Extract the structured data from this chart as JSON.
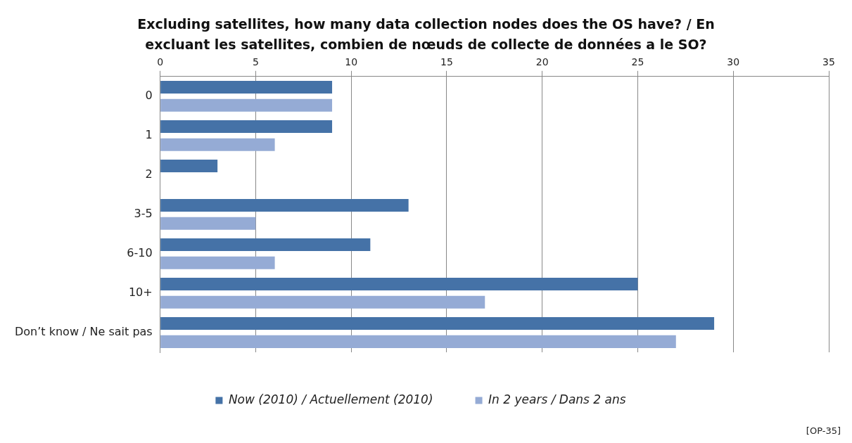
{
  "chart_data": {
    "type": "bar",
    "orientation": "horizontal",
    "title": "Excluding satellites, how many data collection nodes does the OS have? / En excluant les satellites, combien de nœuds de collecte de données a le SO?",
    "categories": [
      "0",
      "1",
      "2",
      "3-5",
      "6-10",
      "10+",
      "Don’t know / Ne sait pas"
    ],
    "series": [
      {
        "name": "Now (2010) / Actuellement (2010)",
        "color": "#4572a7",
        "values": [
          9,
          9,
          3,
          13,
          11,
          25,
          29
        ]
      },
      {
        "name": "In 2 years / Dans 2 ans",
        "color": "#95abd5",
        "values": [
          9,
          6,
          0,
          5,
          6,
          17,
          27
        ]
      }
    ],
    "xlim": [
      0,
      35
    ],
    "xticks": [
      0,
      5,
      10,
      15,
      20,
      25,
      30,
      35
    ],
    "grid": "x",
    "legend": "bottom",
    "annotations": [
      "[OP-35]"
    ]
  }
}
